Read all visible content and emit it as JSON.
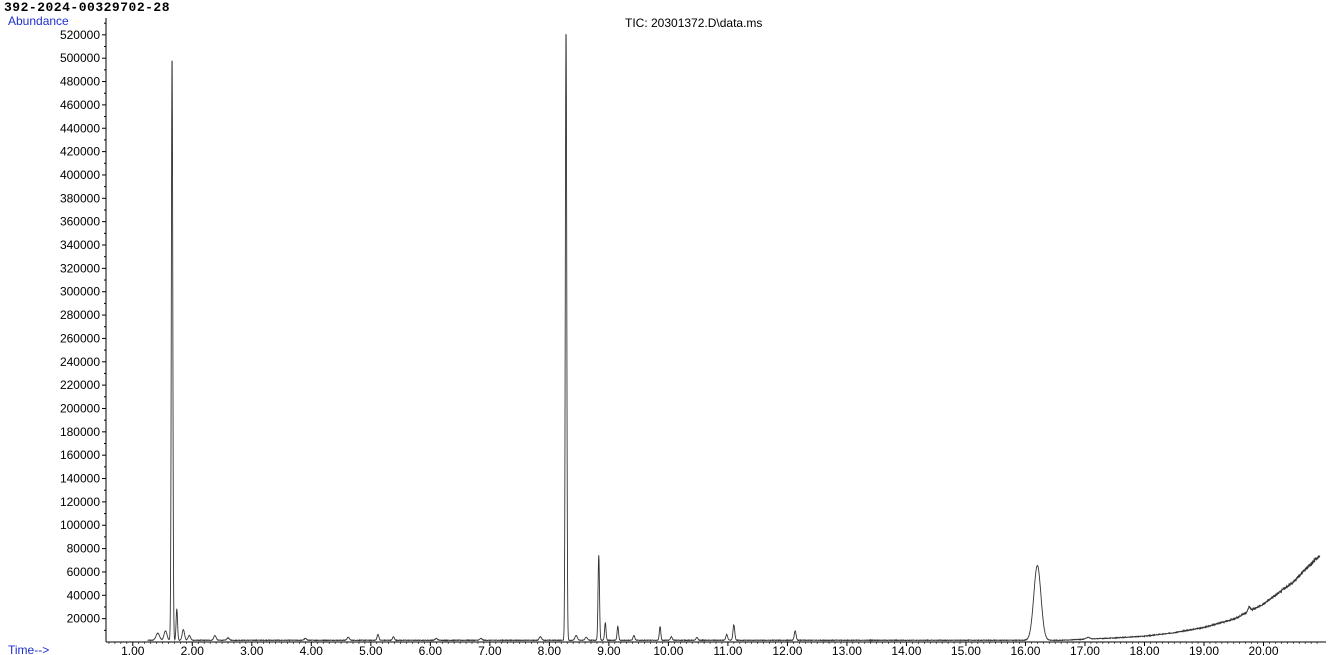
{
  "sample_id": "392-2024-00329702-28",
  "colors": {
    "axis_title": "#1f2fd0",
    "trace": "#333333",
    "axis": "#000000"
  },
  "chart_data": {
    "type": "line",
    "title": "TIC: 20301372.D\\data.ms",
    "xlabel": "Time-->",
    "ylabel": "Abundance",
    "xlim": [
      0.55,
      21.05
    ],
    "ylim": [
      0,
      531000
    ],
    "x_ticks": [
      1,
      2,
      3,
      4,
      5,
      6,
      7,
      8,
      9,
      10,
      11,
      12,
      13,
      14,
      15,
      16,
      17,
      18,
      19,
      20
    ],
    "x_tick_labels": [
      "1.00",
      "2.00",
      "3.00",
      "4.00",
      "5.00",
      "6.00",
      "7.00",
      "8.00",
      "9.00",
      "10.00",
      "11.00",
      "12.00",
      "13.00",
      "14.00",
      "15.00",
      "16.00",
      "17.00",
      "18.00",
      "19.00",
      "20.00"
    ],
    "y_ticks": [
      20000,
      40000,
      60000,
      80000,
      100000,
      120000,
      140000,
      160000,
      180000,
      200000,
      220000,
      240000,
      260000,
      280000,
      300000,
      320000,
      340000,
      360000,
      380000,
      400000,
      420000,
      440000,
      460000,
      480000,
      500000,
      520000
    ],
    "y_tick_labels": [
      "20000",
      "40000",
      "60000",
      "80000",
      "100000",
      "120000",
      "140000",
      "160000",
      "180000",
      "200000",
      "220000",
      "240000",
      "260000",
      "280000",
      "300000",
      "320000",
      "340000",
      "360000",
      "380000",
      "400000",
      "420000",
      "440000",
      "460000",
      "480000",
      "500000",
      "520000"
    ],
    "baseline": 1500,
    "peaks": [
      {
        "x": 1.42,
        "y": 6000,
        "w": 0.03
      },
      {
        "x": 1.55,
        "y": 8000,
        "w": 0.025
      },
      {
        "x": 1.66,
        "y": 503000,
        "w": 0.012
      },
      {
        "x": 1.74,
        "y": 27000,
        "w": 0.012
      },
      {
        "x": 1.85,
        "y": 9000,
        "w": 0.02
      },
      {
        "x": 1.95,
        "y": 4000,
        "w": 0.02
      },
      {
        "x": 2.38,
        "y": 4000,
        "w": 0.02
      },
      {
        "x": 2.6,
        "y": 2000,
        "w": 0.02
      },
      {
        "x": 3.9,
        "y": 1500,
        "w": 0.02
      },
      {
        "x": 4.62,
        "y": 2500,
        "w": 0.02
      },
      {
        "x": 5.12,
        "y": 5000,
        "w": 0.015
      },
      {
        "x": 5.38,
        "y": 3000,
        "w": 0.015
      },
      {
        "x": 6.1,
        "y": 1500,
        "w": 0.02
      },
      {
        "x": 6.85,
        "y": 1500,
        "w": 0.02
      },
      {
        "x": 7.85,
        "y": 3000,
        "w": 0.02
      },
      {
        "x": 8.28,
        "y": 526000,
        "w": 0.012
      },
      {
        "x": 8.45,
        "y": 4000,
        "w": 0.02
      },
      {
        "x": 8.62,
        "y": 2500,
        "w": 0.02
      },
      {
        "x": 8.83,
        "y": 73000,
        "w": 0.012
      },
      {
        "x": 8.94,
        "y": 15000,
        "w": 0.012
      },
      {
        "x": 9.15,
        "y": 12000,
        "w": 0.012
      },
      {
        "x": 9.42,
        "y": 4000,
        "w": 0.015
      },
      {
        "x": 9.86,
        "y": 12000,
        "w": 0.012
      },
      {
        "x": 10.05,
        "y": 3000,
        "w": 0.015
      },
      {
        "x": 10.48,
        "y": 2500,
        "w": 0.015
      },
      {
        "x": 10.98,
        "y": 5000,
        "w": 0.015
      },
      {
        "x": 11.1,
        "y": 13000,
        "w": 0.015
      },
      {
        "x": 12.13,
        "y": 8000,
        "w": 0.015
      },
      {
        "x": 16.2,
        "y": 64000,
        "w": 0.06
      },
      {
        "x": 17.05,
        "y": 1500,
        "w": 0.03
      },
      {
        "x": 19.76,
        "y": 4000,
        "w": 0.02
      }
    ],
    "drift": [
      [
        16.6,
        0
      ],
      [
        17.5,
        2000
      ],
      [
        18.0,
        3500
      ],
      [
        18.5,
        6500
      ],
      [
        19.0,
        11000
      ],
      [
        19.5,
        18000
      ],
      [
        20.0,
        31000
      ],
      [
        20.5,
        50000
      ],
      [
        20.95,
        73000
      ]
    ]
  }
}
